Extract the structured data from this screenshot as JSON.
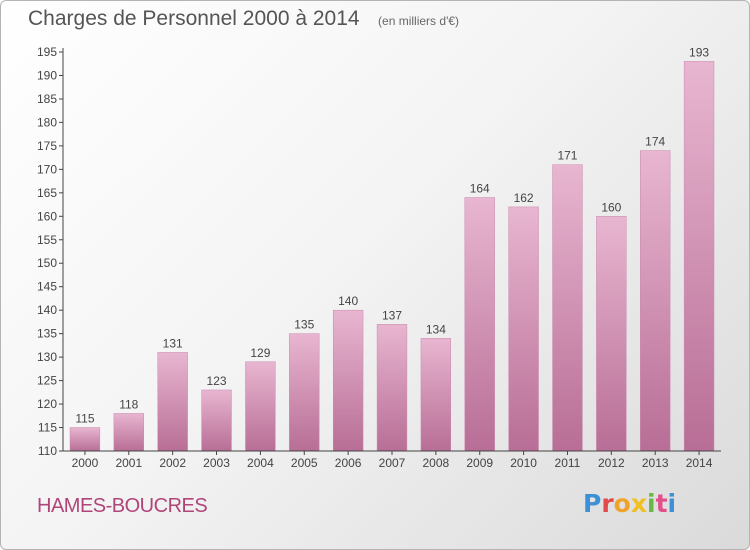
{
  "chart_data": {
    "type": "bar",
    "title": "Charges de Personnel 2000 à 2014",
    "subtitle": "(en milliers d'€)",
    "categories": [
      "2000",
      "2001",
      "2002",
      "2003",
      "2004",
      "2005",
      "2006",
      "2007",
      "2008",
      "2009",
      "2010",
      "2011",
      "2012",
      "2013",
      "2014"
    ],
    "values": [
      115,
      118,
      131,
      123,
      129,
      135,
      140,
      137,
      134,
      164,
      162,
      171,
      160,
      174,
      193
    ],
    "ylim": [
      110,
      195
    ],
    "yticks": [
      110,
      115,
      120,
      125,
      130,
      135,
      140,
      145,
      150,
      155,
      160,
      165,
      170,
      175,
      180,
      185,
      190,
      195
    ],
    "xlabel": "",
    "ylabel": "",
    "grid": false,
    "bar_color": "#d99bbd",
    "bar_color_top": "#e8b6d0",
    "bar_color_bottom": "#b86e96"
  },
  "footer": {
    "commune": "HAMES-BOUCRES",
    "logo": "Proxiti"
  }
}
